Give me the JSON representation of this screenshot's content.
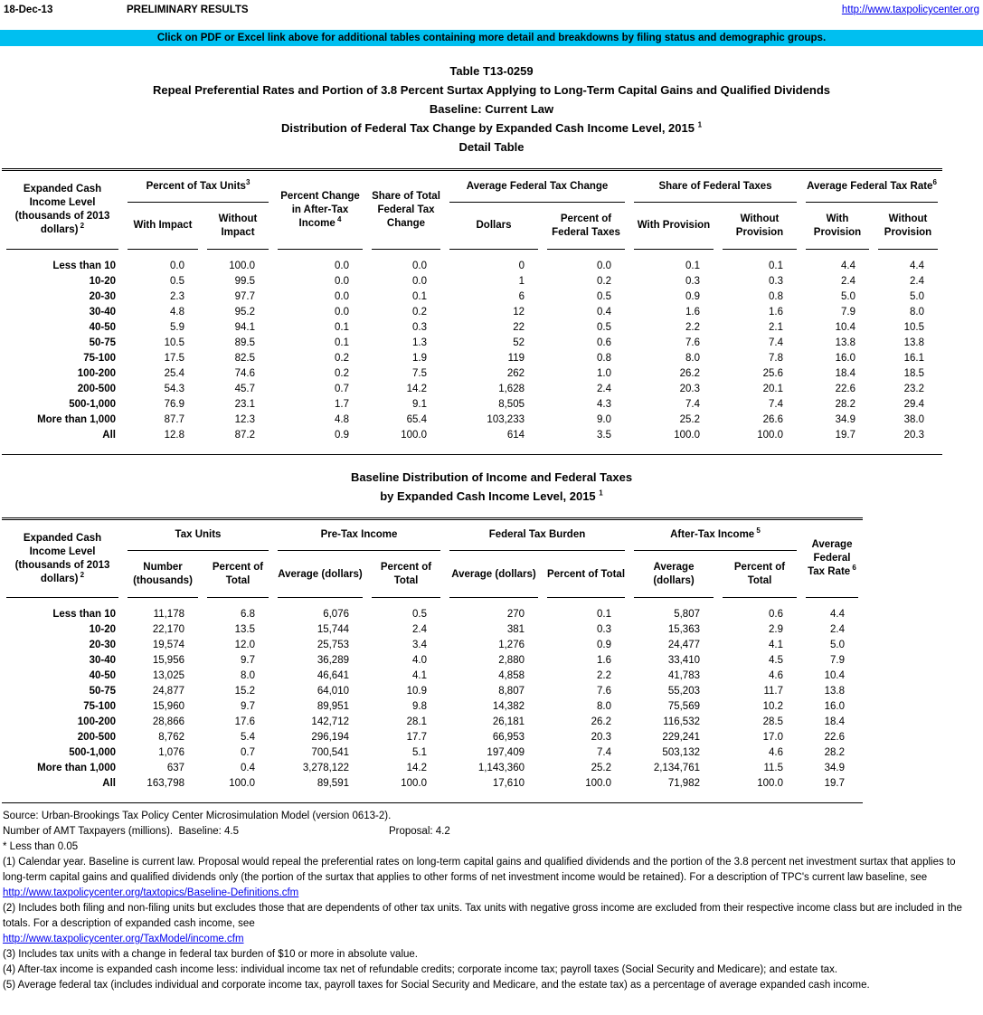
{
  "colors": {
    "banner_bg": "#00bff0",
    "link": "#0000ee"
  },
  "page_header": {
    "date": "18-Dec-13",
    "status": "PRELIMINARY RESULTS",
    "url": "http://www.taxpolicycenter.org"
  },
  "banner": "Click on PDF or Excel link above for additional tables containing more detail and breakdowns by filing status and demographic groups.",
  "titles": {
    "line1": "Table T13-0259",
    "line2": "Repeal Preferential Rates and Portion of 3.8 Percent Surtax Applying to Long-Term Capital Gains and Qualified Dividends",
    "line3": "Baseline: Current Law",
    "line4": "Distribution of Federal Tax Change by Expanded Cash Income Level, 2015",
    "line4_sup": "1",
    "line5": "Detail Table"
  },
  "table1": {
    "label_header": {
      "text": "Expanded Cash Income Level (thousands of 2013 dollars)",
      "sup": "2",
      "gap": true
    },
    "groups": [
      {
        "text": "Percent of Tax Units",
        "sup": "3",
        "gap": false,
        "subs": [
          "With Impact",
          "Without Impact"
        ]
      },
      {
        "text": "Percent Change in After-Tax Income",
        "sup": "4",
        "gap": true
      },
      {
        "text": "Share of Total Federal Tax Change"
      },
      {
        "text": "Average Federal Tax Change",
        "subs": [
          "Dollars",
          "Percent of Federal Taxes"
        ]
      },
      {
        "text": "Share of Federal Taxes",
        "subs": [
          "With Provision",
          "Without Provision"
        ]
      },
      {
        "text": "Average Federal Tax Rate",
        "sup": "6",
        "gap": false,
        "subs": [
          "With Provision",
          "Without Provision"
        ]
      }
    ],
    "rows": [
      [
        "Less than 10",
        "0.0",
        "100.0",
        "0.0",
        "0.0",
        "0",
        "0.0",
        "0.1",
        "0.1",
        "4.4",
        "4.4"
      ],
      [
        "10-20",
        "0.5",
        "99.5",
        "0.0",
        "0.0",
        "1",
        "0.2",
        "0.3",
        "0.3",
        "2.4",
        "2.4"
      ],
      [
        "20-30",
        "2.3",
        "97.7",
        "0.0",
        "0.1",
        "6",
        "0.5",
        "0.9",
        "0.8",
        "5.0",
        "5.0"
      ],
      [
        "30-40",
        "4.8",
        "95.2",
        "0.0",
        "0.2",
        "12",
        "0.4",
        "1.6",
        "1.6",
        "7.9",
        "8.0"
      ],
      [
        "40-50",
        "5.9",
        "94.1",
        "0.1",
        "0.3",
        "22",
        "0.5",
        "2.2",
        "2.1",
        "10.4",
        "10.5"
      ],
      [
        "50-75",
        "10.5",
        "89.5",
        "0.1",
        "1.3",
        "52",
        "0.6",
        "7.6",
        "7.4",
        "13.8",
        "13.8"
      ],
      [
        "75-100",
        "17.5",
        "82.5",
        "0.2",
        "1.9",
        "119",
        "0.8",
        "8.0",
        "7.8",
        "16.0",
        "16.1"
      ],
      [
        "100-200",
        "25.4",
        "74.6",
        "0.2",
        "7.5",
        "262",
        "1.0",
        "26.2",
        "25.6",
        "18.4",
        "18.5"
      ],
      [
        "200-500",
        "54.3",
        "45.7",
        "0.7",
        "14.2",
        "1,628",
        "2.4",
        "20.3",
        "20.1",
        "22.6",
        "23.2"
      ],
      [
        "500-1,000",
        "76.9",
        "23.1",
        "1.7",
        "9.1",
        "8,505",
        "4.3",
        "7.4",
        "7.4",
        "28.2",
        "29.4"
      ],
      [
        "More than 1,000",
        "87.7",
        "12.3",
        "4.8",
        "65.4",
        "103,233",
        "9.0",
        "25.2",
        "26.6",
        "34.9",
        "38.0"
      ],
      [
        "All",
        "12.8",
        "87.2",
        "0.9",
        "100.0",
        "614",
        "3.5",
        "100.0",
        "100.0",
        "19.7",
        "20.3"
      ]
    ]
  },
  "between_title": {
    "line1": "Baseline Distribution of Income and Federal Taxes",
    "line2": "by Expanded Cash Income Level, 2015",
    "line2_sup": "1"
  },
  "table2": {
    "label_header": {
      "text": "Expanded Cash Income Level (thousands of 2013 dollars)",
      "sup": "2",
      "gap": true
    },
    "groups": [
      {
        "text": "Tax Units",
        "subs": [
          "Number (thousands)",
          "Percent of Total"
        ]
      },
      {
        "text": "Pre-Tax Income",
        "subs": [
          "Average (dollars)",
          "Percent of Total"
        ]
      },
      {
        "text": "Federal Tax Burden",
        "subs": [
          "Average (dollars)",
          "Percent of Total"
        ]
      },
      {
        "text": "After-Tax Income",
        "sup": "5",
        "gap": true,
        "subs": [
          "Average (dollars)",
          "Percent of Total"
        ]
      },
      {
        "text": "Average Federal Tax Rate",
        "sup": "6",
        "gap": true
      }
    ],
    "rows": [
      [
        "Less than 10",
        "11,178",
        "6.8",
        "6,076",
        "0.5",
        "270",
        "0.1",
        "5,807",
        "0.6",
        "4.4"
      ],
      [
        "10-20",
        "22,170",
        "13.5",
        "15,744",
        "2.4",
        "381",
        "0.3",
        "15,363",
        "2.9",
        "2.4"
      ],
      [
        "20-30",
        "19,574",
        "12.0",
        "25,753",
        "3.4",
        "1,276",
        "0.9",
        "24,477",
        "4.1",
        "5.0"
      ],
      [
        "30-40",
        "15,956",
        "9.7",
        "36,289",
        "4.0",
        "2,880",
        "1.6",
        "33,410",
        "4.5",
        "7.9"
      ],
      [
        "40-50",
        "13,025",
        "8.0",
        "46,641",
        "4.1",
        "4,858",
        "2.2",
        "41,783",
        "4.6",
        "10.4"
      ],
      [
        "50-75",
        "24,877",
        "15.2",
        "64,010",
        "10.9",
        "8,807",
        "7.6",
        "55,203",
        "11.7",
        "13.8"
      ],
      [
        "75-100",
        "15,960",
        "9.7",
        "89,951",
        "9.8",
        "14,382",
        "8.0",
        "75,569",
        "10.2",
        "16.0"
      ],
      [
        "100-200",
        "28,866",
        "17.6",
        "142,712",
        "28.1",
        "26,181",
        "26.2",
        "116,532",
        "28.5",
        "18.4"
      ],
      [
        "200-500",
        "8,762",
        "5.4",
        "296,194",
        "17.7",
        "66,953",
        "20.3",
        "229,241",
        "17.0",
        "22.6"
      ],
      [
        "500-1,000",
        "1,076",
        "0.7",
        "700,541",
        "5.1",
        "197,409",
        "7.4",
        "503,132",
        "4.6",
        "28.2"
      ],
      [
        "More than 1,000",
        "637",
        "0.4",
        "3,278,122",
        "14.2",
        "1,143,360",
        "25.2",
        "2,134,761",
        "11.5",
        "34.9"
      ],
      [
        "All",
        "163,798",
        "100.0",
        "89,591",
        "100.0",
        "17,610",
        "100.0",
        "71,982",
        "100.0",
        "19.7"
      ]
    ]
  },
  "footnotes": [
    {
      "type": "text",
      "text": "Source: Urban-Brookings Tax Policy Center Microsimulation Model (version 0613-2)."
    },
    {
      "type": "amt",
      "left": "Number of AMT Taxpayers (millions).  Baseline: 4.5",
      "right": "Proposal: 4.2"
    },
    {
      "type": "text",
      "text": "* Less than 0.05"
    },
    {
      "type": "text",
      "text": "(1) Calendar year. Baseline is current law. Proposal would repeal the preferential rates on long-term capital gains and qualified dividends and the portion of the 3.8 percent net investment surtax that applies to long-term capital gains and qualified dividends only (the portion of the surtax that applies to other forms of net investment income would be retained). For a description of TPC's current law baseline, see"
    },
    {
      "type": "link",
      "text": "http://www.taxpolicycenter.org/taxtopics/Baseline-Definitions.cfm"
    },
    {
      "type": "text",
      "text": "(2) Includes both filing and non-filing units but excludes those that are dependents of other tax units. Tax units with negative gross income are excluded from their respective income class but are included in the totals. For a description of expanded cash income, see"
    },
    {
      "type": "link",
      "text": "http://www.taxpolicycenter.org/TaxModel/income.cfm"
    },
    {
      "type": "text",
      "text": "(3) Includes tax units with a change in federal tax burden of $10 or more in absolute value."
    },
    {
      "type": "text",
      "text": "(4) After-tax income is expanded cash income less: individual income tax net of refundable credits; corporate income tax; payroll taxes (Social Security and Medicare); and estate tax."
    },
    {
      "type": "text",
      "text": "(5) Average federal tax (includes individual and corporate income tax, payroll taxes for Social Security and Medicare, and the estate tax) as a percentage of average expanded cash income."
    }
  ]
}
